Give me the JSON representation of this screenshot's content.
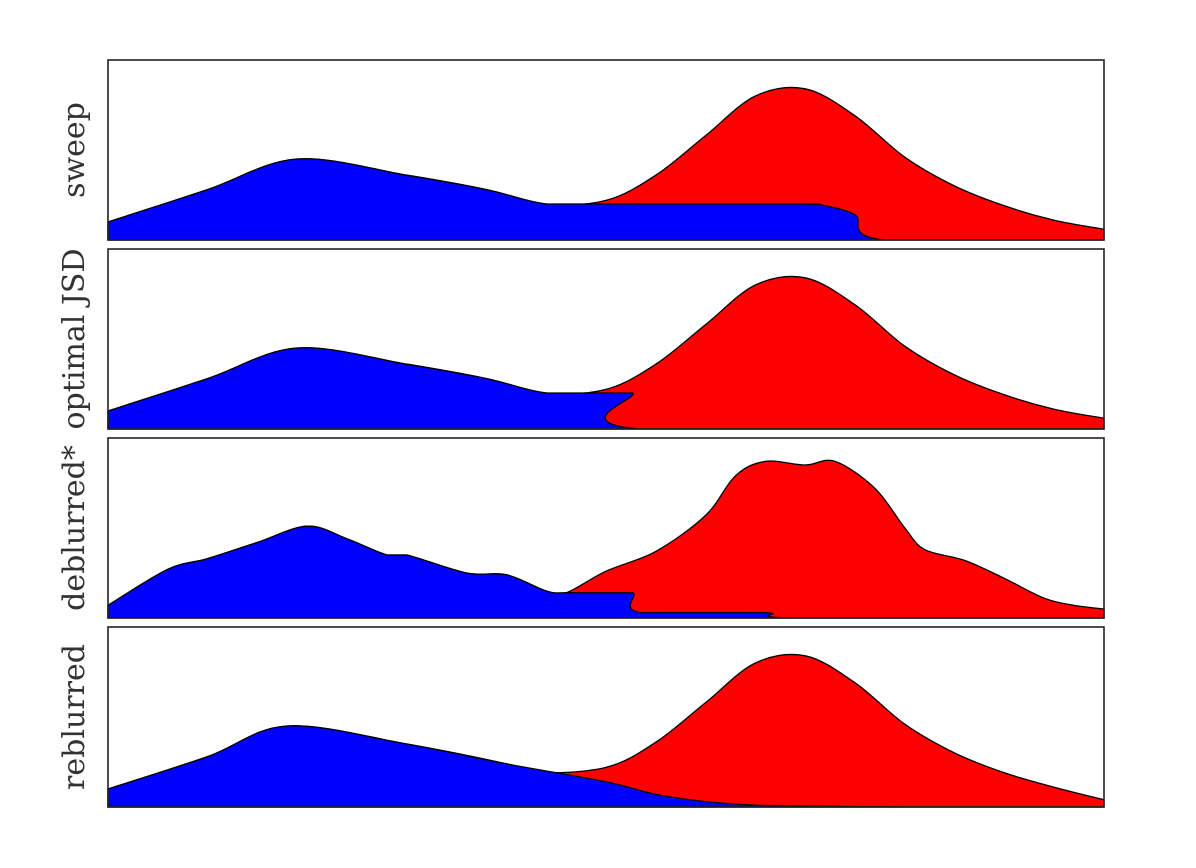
{
  "chart_data": [
    {
      "type": "area",
      "ylabel": "sweep",
      "xlim": [
        0,
        1
      ],
      "ylim": [
        0,
        1
      ],
      "series": [
        {
          "color": "#ff0000",
          "x": [
            0.0,
            0.1,
            0.19,
            0.3,
            0.38,
            0.44,
            0.5,
            0.55,
            0.6,
            0.65,
            0.7,
            0.75,
            0.8,
            0.85,
            0.9,
            0.95,
            1.0
          ],
          "values": [
            0.1,
            0.28,
            0.45,
            0.36,
            0.28,
            0.2,
            0.22,
            0.36,
            0.58,
            0.8,
            0.84,
            0.69,
            0.46,
            0.3,
            0.19,
            0.11,
            0.06
          ]
        },
        {
          "color": "#0000ff",
          "x": [
            0.0,
            0.1,
            0.19,
            0.3,
            0.38,
            0.44,
            0.5,
            0.6,
            0.7,
            0.72,
            0.75,
            0.78,
            1.0
          ],
          "values": [
            0.1,
            0.28,
            0.45,
            0.36,
            0.28,
            0.2,
            0.2,
            0.2,
            0.2,
            0.19,
            0.14,
            0.0,
            0.0
          ]
        }
      ]
    },
    {
      "type": "area",
      "ylabel": "optimal JSD",
      "xlim": [
        0,
        1
      ],
      "ylim": [
        0,
        1
      ],
      "series": [
        {
          "color": "#ff0000",
          "x": [
            0.0,
            0.1,
            0.19,
            0.3,
            0.38,
            0.44,
            0.5,
            0.55,
            0.6,
            0.65,
            0.7,
            0.75,
            0.8,
            0.85,
            0.9,
            0.95,
            1.0
          ],
          "values": [
            0.1,
            0.28,
            0.45,
            0.36,
            0.28,
            0.2,
            0.22,
            0.36,
            0.58,
            0.8,
            0.84,
            0.69,
            0.46,
            0.3,
            0.19,
            0.11,
            0.06
          ]
        },
        {
          "color": "#0000ff",
          "x": [
            0.0,
            0.1,
            0.19,
            0.3,
            0.38,
            0.44,
            0.5,
            0.527,
            0.535,
            1.0
          ],
          "values": [
            0.1,
            0.28,
            0.45,
            0.36,
            0.28,
            0.2,
            0.2,
            0.2,
            0.0,
            0.0
          ]
        }
      ]
    },
    {
      "type": "area",
      "ylabel": "deblurred*",
      "xlim": [
        0,
        1
      ],
      "ylim": [
        0,
        1
      ],
      "series": [
        {
          "color": "#ff0000",
          "x": [
            0.0,
            0.06,
            0.1,
            0.15,
            0.2,
            0.24,
            0.28,
            0.3,
            0.36,
            0.4,
            0.44,
            0.46,
            0.5,
            0.55,
            0.6,
            0.63,
            0.66,
            0.7,
            0.73,
            0.77,
            0.8,
            0.82,
            0.86,
            0.9,
            0.94,
            0.97,
            1.0
          ],
          "values": [
            0.07,
            0.27,
            0.33,
            0.42,
            0.51,
            0.44,
            0.35,
            0.35,
            0.25,
            0.24,
            0.15,
            0.14,
            0.26,
            0.37,
            0.57,
            0.79,
            0.87,
            0.85,
            0.87,
            0.72,
            0.5,
            0.38,
            0.32,
            0.22,
            0.11,
            0.07,
            0.05
          ]
        },
        {
          "color": "#0000ff",
          "x": [
            0.0,
            0.06,
            0.1,
            0.15,
            0.2,
            0.24,
            0.28,
            0.3,
            0.36,
            0.4,
            0.44,
            0.46,
            0.5,
            0.527,
            0.535,
            0.66,
            0.69,
            1.0
          ],
          "values": [
            0.07,
            0.27,
            0.33,
            0.42,
            0.51,
            0.44,
            0.35,
            0.35,
            0.25,
            0.24,
            0.15,
            0.14,
            0.14,
            0.14,
            0.03,
            0.03,
            0.0,
            0.0
          ]
        }
      ]
    },
    {
      "type": "area",
      "ylabel": "reblurred",
      "xlim": [
        0,
        1
      ],
      "ylim": [
        0,
        1
      ],
      "series": [
        {
          "color": "#ff0000",
          "x": [
            0.0,
            0.1,
            0.18,
            0.3,
            0.4,
            0.43,
            0.5,
            0.55,
            0.6,
            0.65,
            0.7,
            0.75,
            0.8,
            0.85,
            0.9,
            0.95,
            1.0
          ],
          "values": [
            0.1,
            0.28,
            0.45,
            0.35,
            0.24,
            0.19,
            0.22,
            0.36,
            0.58,
            0.8,
            0.84,
            0.69,
            0.46,
            0.3,
            0.19,
            0.11,
            0.04
          ]
        },
        {
          "color": "#0000ff",
          "x": [
            0.0,
            0.1,
            0.18,
            0.3,
            0.4,
            0.5,
            0.55,
            0.6,
            0.65,
            0.7,
            0.8,
            1.0
          ],
          "values": [
            0.1,
            0.28,
            0.45,
            0.35,
            0.24,
            0.14,
            0.07,
            0.03,
            0.01,
            0.005,
            0.0,
            0.0
          ]
        }
      ]
    }
  ]
}
